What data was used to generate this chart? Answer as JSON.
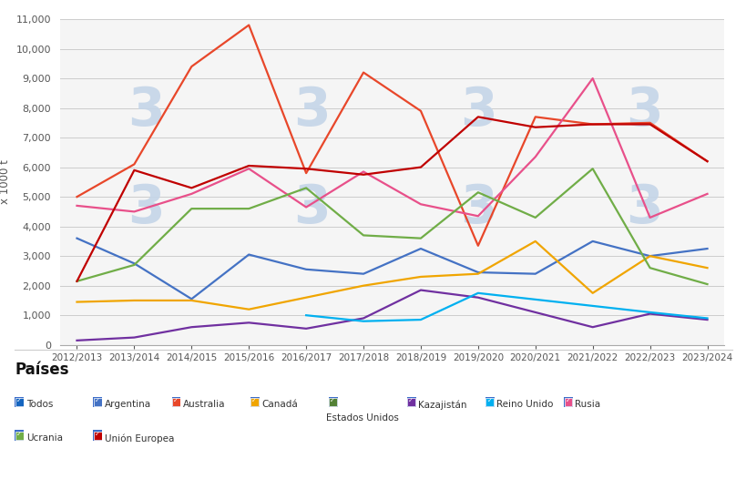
{
  "campaigns": [
    "2012/2013",
    "2013/2014",
    "2014/2015",
    "2015/2016",
    "2016/2017",
    "2017/2018",
    "2018/2019",
    "2019/2020",
    "2020/2021",
    "2021/2022",
    "2022/2023",
    "2023/2024"
  ],
  "series": {
    "Argentina": {
      "color": "#4472c4",
      "values": [
        3600,
        2750,
        1550,
        3050,
        2550,
        2400,
        3250,
        2450,
        2400,
        3500,
        3000,
        3250
      ]
    },
    "Australia": {
      "color": "#e8472a",
      "values": [
        5000,
        6100,
        9400,
        10800,
        5800,
        9200,
        7900,
        3350,
        7700,
        7450,
        7500,
        6200
      ]
    },
    "Canada": {
      "color": "#f0a500",
      "values": [
        1450,
        1500,
        1500,
        1200,
        1600,
        2000,
        2300,
        2400,
        3500,
        1750,
        3000,
        2600
      ]
    },
    "Kazajistan": {
      "color": "#7030a0",
      "values": [
        150,
        250,
        600,
        750,
        550,
        900,
        1850,
        1600,
        1100,
        600,
        1050,
        850
      ]
    },
    "Reino_Unido": {
      "color": "#00b0f0",
      "values": [
        null,
        null,
        null,
        null,
        1000,
        800,
        850,
        1750,
        null,
        null,
        1100,
        900
      ]
    },
    "Rusia": {
      "color": "#e8508a",
      "values": [
        4700,
        4500,
        5100,
        5950,
        4650,
        5850,
        4750,
        4350,
        6350,
        9000,
        4300,
        5100
      ]
    },
    "Ucrania": {
      "color": "#70ad47",
      "values": [
        2150,
        2700,
        4600,
        4600,
        5300,
        3700,
        3600,
        5150,
        4300,
        5950,
        2600,
        2050
      ]
    },
    "Union_Europea": {
      "color": "#c00000",
      "values": [
        2150,
        5900,
        5300,
        6050,
        5950,
        5750,
        6000,
        7700,
        7350,
        7450,
        7450,
        6200
      ]
    }
  },
  "ylabel": "x 1000 t",
  "ylim": [
    0,
    11000
  ],
  "yticks": [
    0,
    1000,
    2000,
    3000,
    4000,
    5000,
    6000,
    7000,
    8000,
    9000,
    10000,
    11000
  ],
  "background_color": "#f5f5f5",
  "plot_bg": "#f5f5f5",
  "watermark_color": "#c5d5e8",
  "legend_title": "Países",
  "legend_data": [
    {
      "label": "Todos",
      "color": "#1565c0"
    },
    {
      "label": "Argentina",
      "color": "#4472c4"
    },
    {
      "label": "Australia",
      "color": "#e8472a"
    },
    {
      "label": "Canadá",
      "color": "#f0a500"
    },
    {
      "label": "Estados Unidos",
      "color": "#538135"
    },
    {
      "label": "Kazajistán",
      "color": "#7030a0"
    },
    {
      "label": "Reino Unido",
      "color": "#00b0f0"
    },
    {
      "label": "Rusia",
      "color": "#e8508a"
    },
    {
      "label": "Ucrania",
      "color": "#70ad47"
    },
    {
      "label": "Unión Europea",
      "color": "#c00000"
    }
  ]
}
